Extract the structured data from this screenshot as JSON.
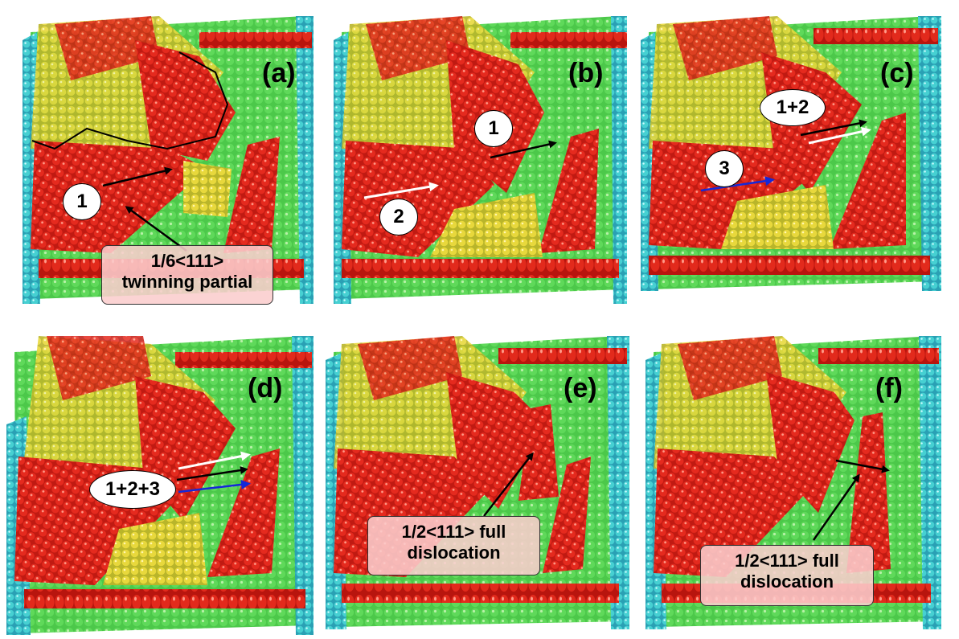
{
  "panels": [
    {
      "id": "a",
      "label": "(a)",
      "bubbles": [
        "1"
      ],
      "note": [
        "1/6<111>",
        "twinning partial"
      ]
    },
    {
      "id": "b",
      "label": "(b)",
      "bubbles": [
        "1",
        "2"
      ]
    },
    {
      "id": "c",
      "label": "(c)",
      "bubbles": [
        "1+2",
        "3"
      ]
    },
    {
      "id": "d",
      "label": "(d)",
      "bubbles": [
        "1+2+3"
      ]
    },
    {
      "id": "e",
      "label": "(e)",
      "bubbles": [],
      "note": [
        "1/2<111> full",
        "dislocation"
      ]
    },
    {
      "id": "f",
      "label": "(f)",
      "bubbles": [],
      "note": [
        "1/2<111> full",
        "dislocation"
      ]
    }
  ],
  "colors": {
    "background_atoms": "#4cc84a",
    "defect_atoms": "#e0261c",
    "interface_atoms": "#e6d23a",
    "surface_atoms": "#3ec8d8",
    "arrow_black": "#000000",
    "arrow_white": "#ffffff",
    "arrow_blue": "#1428d8"
  }
}
